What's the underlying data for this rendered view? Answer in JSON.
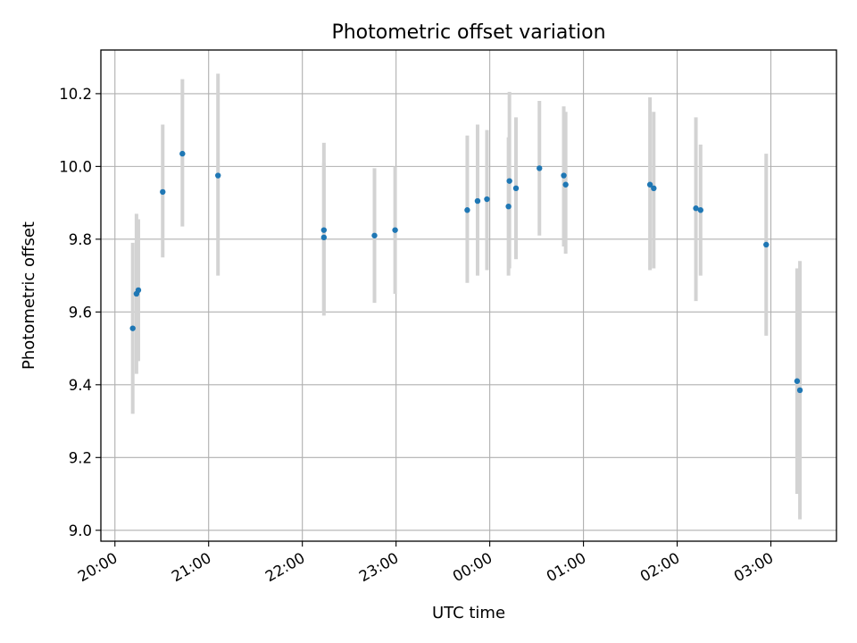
{
  "chart_data": {
    "type": "scatter",
    "title": "Photometric offset variation",
    "xlabel": "UTC time",
    "ylabel": "Photometric offset",
    "x_unit": "hours",
    "xlim": [
      19.85,
      27.7
    ],
    "ylim": [
      8.97,
      10.32
    ],
    "x_ticks": [
      {
        "value": 20,
        "label": "20:00"
      },
      {
        "value": 21,
        "label": "21:00"
      },
      {
        "value": 22,
        "label": "22:00"
      },
      {
        "value": 23,
        "label": "23:00"
      },
      {
        "value": 24,
        "label": "00:00"
      },
      {
        "value": 25,
        "label": "01:00"
      },
      {
        "value": 26,
        "label": "02:00"
      },
      {
        "value": 27,
        "label": "03:00"
      }
    ],
    "y_ticks": [
      {
        "value": 9.0,
        "label": "9.0"
      },
      {
        "value": 9.2,
        "label": "9.2"
      },
      {
        "value": 9.4,
        "label": "9.4"
      },
      {
        "value": 9.6,
        "label": "9.6"
      },
      {
        "value": 9.8,
        "label": "9.8"
      },
      {
        "value": 10.0,
        "label": "10.0"
      },
      {
        "value": 10.2,
        "label": "10.2"
      }
    ],
    "grid": true,
    "marker_color": "#1f77b4",
    "errorbar_color": "#d3d3d3",
    "points": [
      {
        "x": 20.19,
        "y": 9.555,
        "ylo": 9.32,
        "yhi": 9.79
      },
      {
        "x": 20.23,
        "y": 9.65,
        "ylo": 9.43,
        "yhi": 9.87
      },
      {
        "x": 20.25,
        "y": 9.66,
        "ylo": 9.465,
        "yhi": 9.855
      },
      {
        "x": 20.51,
        "y": 9.93,
        "ylo": 9.75,
        "yhi": 10.115
      },
      {
        "x": 20.72,
        "y": 10.035,
        "ylo": 9.835,
        "yhi": 10.24
      },
      {
        "x": 21.1,
        "y": 9.975,
        "ylo": 9.7,
        "yhi": 10.255
      },
      {
        "x": 22.23,
        "y": 9.825,
        "ylo": 9.59,
        "yhi": 10.065
      },
      {
        "x": 22.23,
        "y": 9.805,
        "ylo": 9.6,
        "yhi": 10.01
      },
      {
        "x": 22.77,
        "y": 9.81,
        "ylo": 9.625,
        "yhi": 9.995
      },
      {
        "x": 22.99,
        "y": 9.825,
        "ylo": 9.65,
        "yhi": 10.0
      },
      {
        "x": 23.76,
        "y": 9.88,
        "ylo": 9.68,
        "yhi": 10.085
      },
      {
        "x": 23.87,
        "y": 9.905,
        "ylo": 9.7,
        "yhi": 10.115
      },
      {
        "x": 23.97,
        "y": 9.91,
        "ylo": 9.715,
        "yhi": 10.1
      },
      {
        "x": 24.21,
        "y": 9.96,
        "ylo": 9.72,
        "yhi": 10.205
      },
      {
        "x": 24.2,
        "y": 9.89,
        "ylo": 9.7,
        "yhi": 10.08
      },
      {
        "x": 24.28,
        "y": 9.94,
        "ylo": 9.745,
        "yhi": 10.135
      },
      {
        "x": 24.53,
        "y": 9.995,
        "ylo": 9.81,
        "yhi": 10.18
      },
      {
        "x": 24.79,
        "y": 9.975,
        "ylo": 9.78,
        "yhi": 10.165
      },
      {
        "x": 24.81,
        "y": 9.95,
        "ylo": 9.76,
        "yhi": 10.15
      },
      {
        "x": 25.71,
        "y": 9.95,
        "ylo": 9.715,
        "yhi": 10.19
      },
      {
        "x": 25.75,
        "y": 9.94,
        "ylo": 9.72,
        "yhi": 10.15
      },
      {
        "x": 26.2,
        "y": 9.885,
        "ylo": 9.63,
        "yhi": 10.135
      },
      {
        "x": 26.25,
        "y": 9.88,
        "ylo": 9.7,
        "yhi": 10.06
      },
      {
        "x": 26.95,
        "y": 9.785,
        "ylo": 9.535,
        "yhi": 10.035
      },
      {
        "x": 27.28,
        "y": 9.41,
        "ylo": 9.1,
        "yhi": 9.72
      },
      {
        "x": 27.31,
        "y": 9.385,
        "ylo": 9.03,
        "yhi": 9.74
      }
    ]
  }
}
